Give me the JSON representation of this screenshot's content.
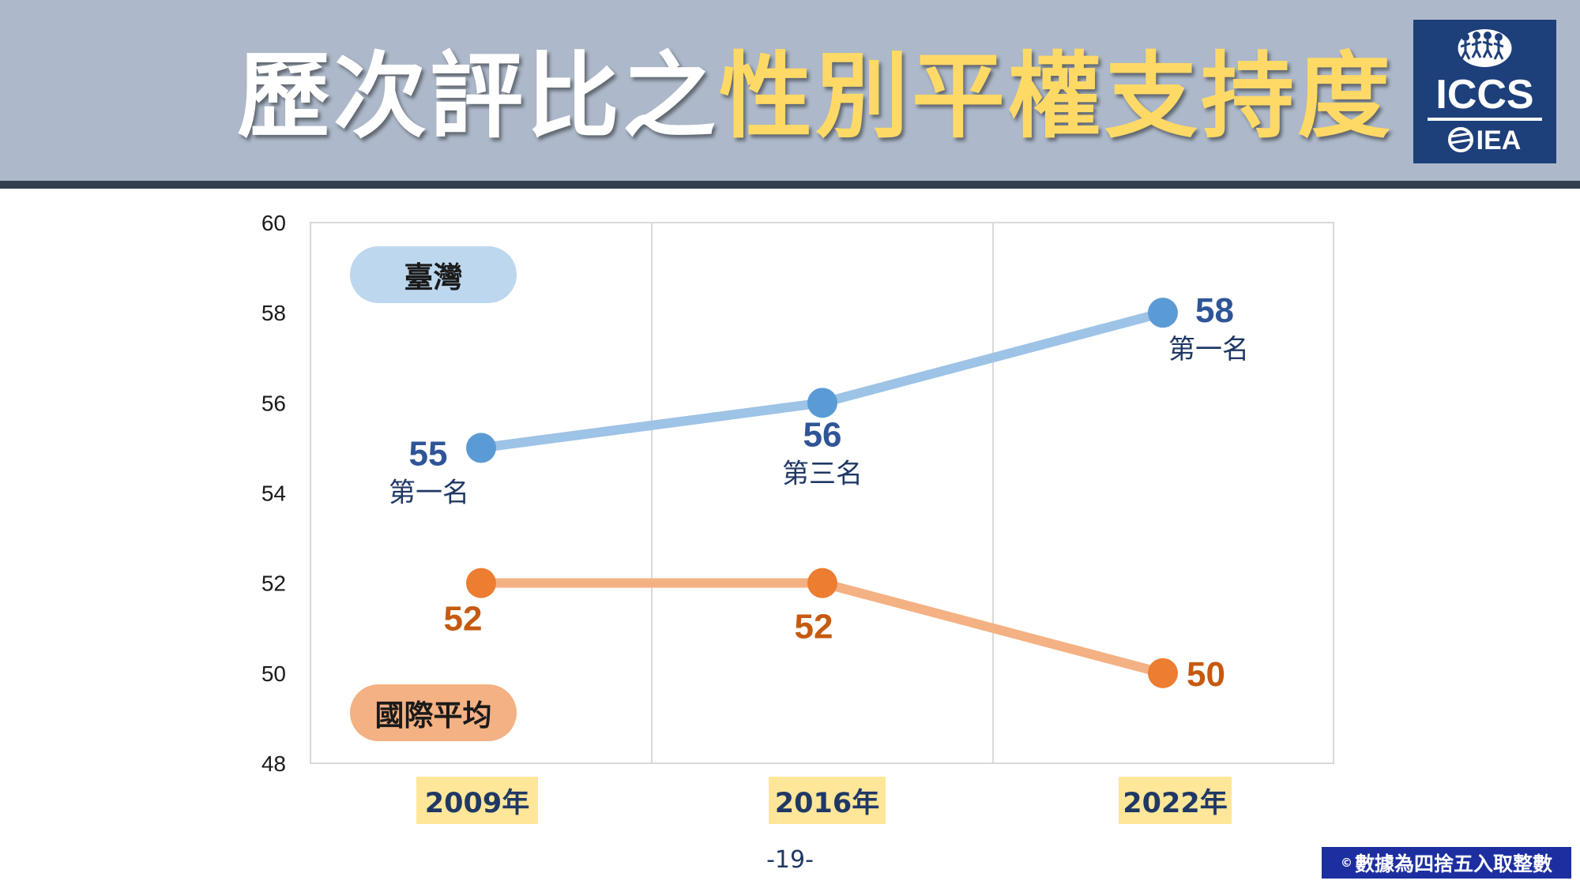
{
  "header": {
    "title_part1": "歷次評比之",
    "title_part2": "性別平權支持度"
  },
  "logo": {
    "line1": "ICCS",
    "line2": "IEA"
  },
  "chart_data": {
    "type": "line",
    "categories": [
      "2009年",
      "2016年",
      "2022年"
    ],
    "ylim": [
      48,
      60
    ],
    "yticks": [
      "48",
      "50",
      "52",
      "54",
      "56",
      "58",
      "60"
    ],
    "grid": "vertical",
    "series": [
      {
        "name": "臺灣",
        "values": [
          55,
          56,
          58
        ],
        "labels": [
          "55",
          "56",
          "58"
        ],
        "rank_labels": [
          "第一名",
          "第三名",
          "第一名"
        ],
        "line_color": "#9dc3e6",
        "marker_color": "#5b9bd5",
        "label_color": "#2f5597",
        "rank_color": "#1f3864"
      },
      {
        "name": "國際平均",
        "values": [
          52,
          52,
          50
        ],
        "labels": [
          "52",
          "52",
          "50"
        ],
        "line_color": "#f4b183",
        "marker_color": "#ed7d31",
        "label_color": "#c55a11"
      }
    ]
  },
  "footer": {
    "page": "-19-",
    "note_symbol": "©",
    "note": "數據為四捨五入取整數"
  }
}
